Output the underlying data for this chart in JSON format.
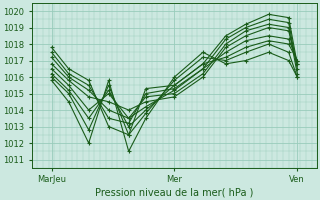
{
  "title": "Pression niveau de la mer( hPa )",
  "ylim": [
    1010.5,
    1020.5
  ],
  "yticks": [
    1011,
    1012,
    1013,
    1014,
    1015,
    1016,
    1017,
    1018,
    1019,
    1020
  ],
  "x_tick_labels": [
    "MarJeu",
    "Mer",
    "Ven"
  ],
  "x_tick_positions": [
    0.07,
    0.5,
    0.93
  ],
  "bg_color": "#cce8e0",
  "grid_color": "#99ccbb",
  "line_color": "#1a5c1a",
  "lines": [
    {
      "x": [
        0.07,
        0.13,
        0.2,
        0.27,
        0.34,
        0.4,
        0.5,
        0.6,
        0.68,
        0.75,
        0.83,
        0.9,
        0.93
      ],
      "y": [
        1017.8,
        1016.5,
        1015.8,
        1013.0,
        1012.5,
        1015.3,
        1015.5,
        1016.8,
        1018.5,
        1019.2,
        1019.8,
        1019.6,
        1016.8
      ]
    },
    {
      "x": [
        0.07,
        0.13,
        0.2,
        0.27,
        0.34,
        0.4,
        0.5,
        0.6,
        0.68,
        0.75,
        0.83,
        0.9,
        0.93
      ],
      "y": [
        1017.5,
        1016.2,
        1015.5,
        1013.5,
        1013.2,
        1015.0,
        1015.3,
        1016.5,
        1018.3,
        1019.0,
        1019.5,
        1019.3,
        1016.5
      ]
    },
    {
      "x": [
        0.07,
        0.13,
        0.2,
        0.27,
        0.34,
        0.4,
        0.5,
        0.6,
        0.68,
        0.75,
        0.83,
        0.9,
        0.93
      ],
      "y": [
        1017.2,
        1016.0,
        1015.2,
        1014.0,
        1013.5,
        1014.8,
        1015.0,
        1016.2,
        1018.0,
        1018.8,
        1019.2,
        1019.0,
        1016.2
      ]
    },
    {
      "x": [
        0.07,
        0.13,
        0.2,
        0.27,
        0.34,
        0.4,
        0.5,
        0.6,
        0.68,
        0.75,
        0.83,
        0.9,
        0.93
      ],
      "y": [
        1016.8,
        1015.8,
        1014.8,
        1014.5,
        1014.0,
        1014.5,
        1014.8,
        1016.0,
        1017.8,
        1018.5,
        1019.0,
        1018.8,
        1016.8
      ]
    },
    {
      "x": [
        0.07,
        0.13,
        0.2,
        0.27,
        0.34,
        0.4,
        0.5,
        0.6,
        0.68,
        0.75,
        0.83,
        0.9,
        0.93
      ],
      "y": [
        1016.5,
        1015.5,
        1014.0,
        1015.0,
        1013.5,
        1014.2,
        1015.2,
        1016.5,
        1017.5,
        1018.2,
        1018.5,
        1018.3,
        1017.0
      ]
    },
    {
      "x": [
        0.07,
        0.13,
        0.2,
        0.27,
        0.34,
        0.4,
        0.5,
        0.6,
        0.68,
        0.75,
        0.83,
        0.9,
        0.93
      ],
      "y": [
        1016.2,
        1015.2,
        1013.5,
        1015.2,
        1013.0,
        1014.0,
        1015.5,
        1016.8,
        1017.2,
        1017.8,
        1018.2,
        1018.0,
        1017.0
      ]
    },
    {
      "x": [
        0.07,
        0.13,
        0.2,
        0.27,
        0.34,
        0.4,
        0.5,
        0.6,
        0.68,
        0.75,
        0.83,
        0.9,
        0.93
      ],
      "y": [
        1016.0,
        1015.0,
        1012.8,
        1015.5,
        1012.5,
        1013.8,
        1015.8,
        1017.2,
        1017.0,
        1017.5,
        1018.0,
        1017.5,
        1016.0
      ]
    },
    {
      "x": [
        0.07,
        0.13,
        0.2,
        0.27,
        0.34,
        0.4,
        0.5,
        0.6,
        0.68,
        0.75,
        0.83,
        0.9,
        0.93
      ],
      "y": [
        1015.8,
        1014.5,
        1012.0,
        1015.8,
        1011.5,
        1013.5,
        1016.0,
        1017.5,
        1016.8,
        1017.0,
        1017.5,
        1017.0,
        1016.0
      ]
    }
  ]
}
